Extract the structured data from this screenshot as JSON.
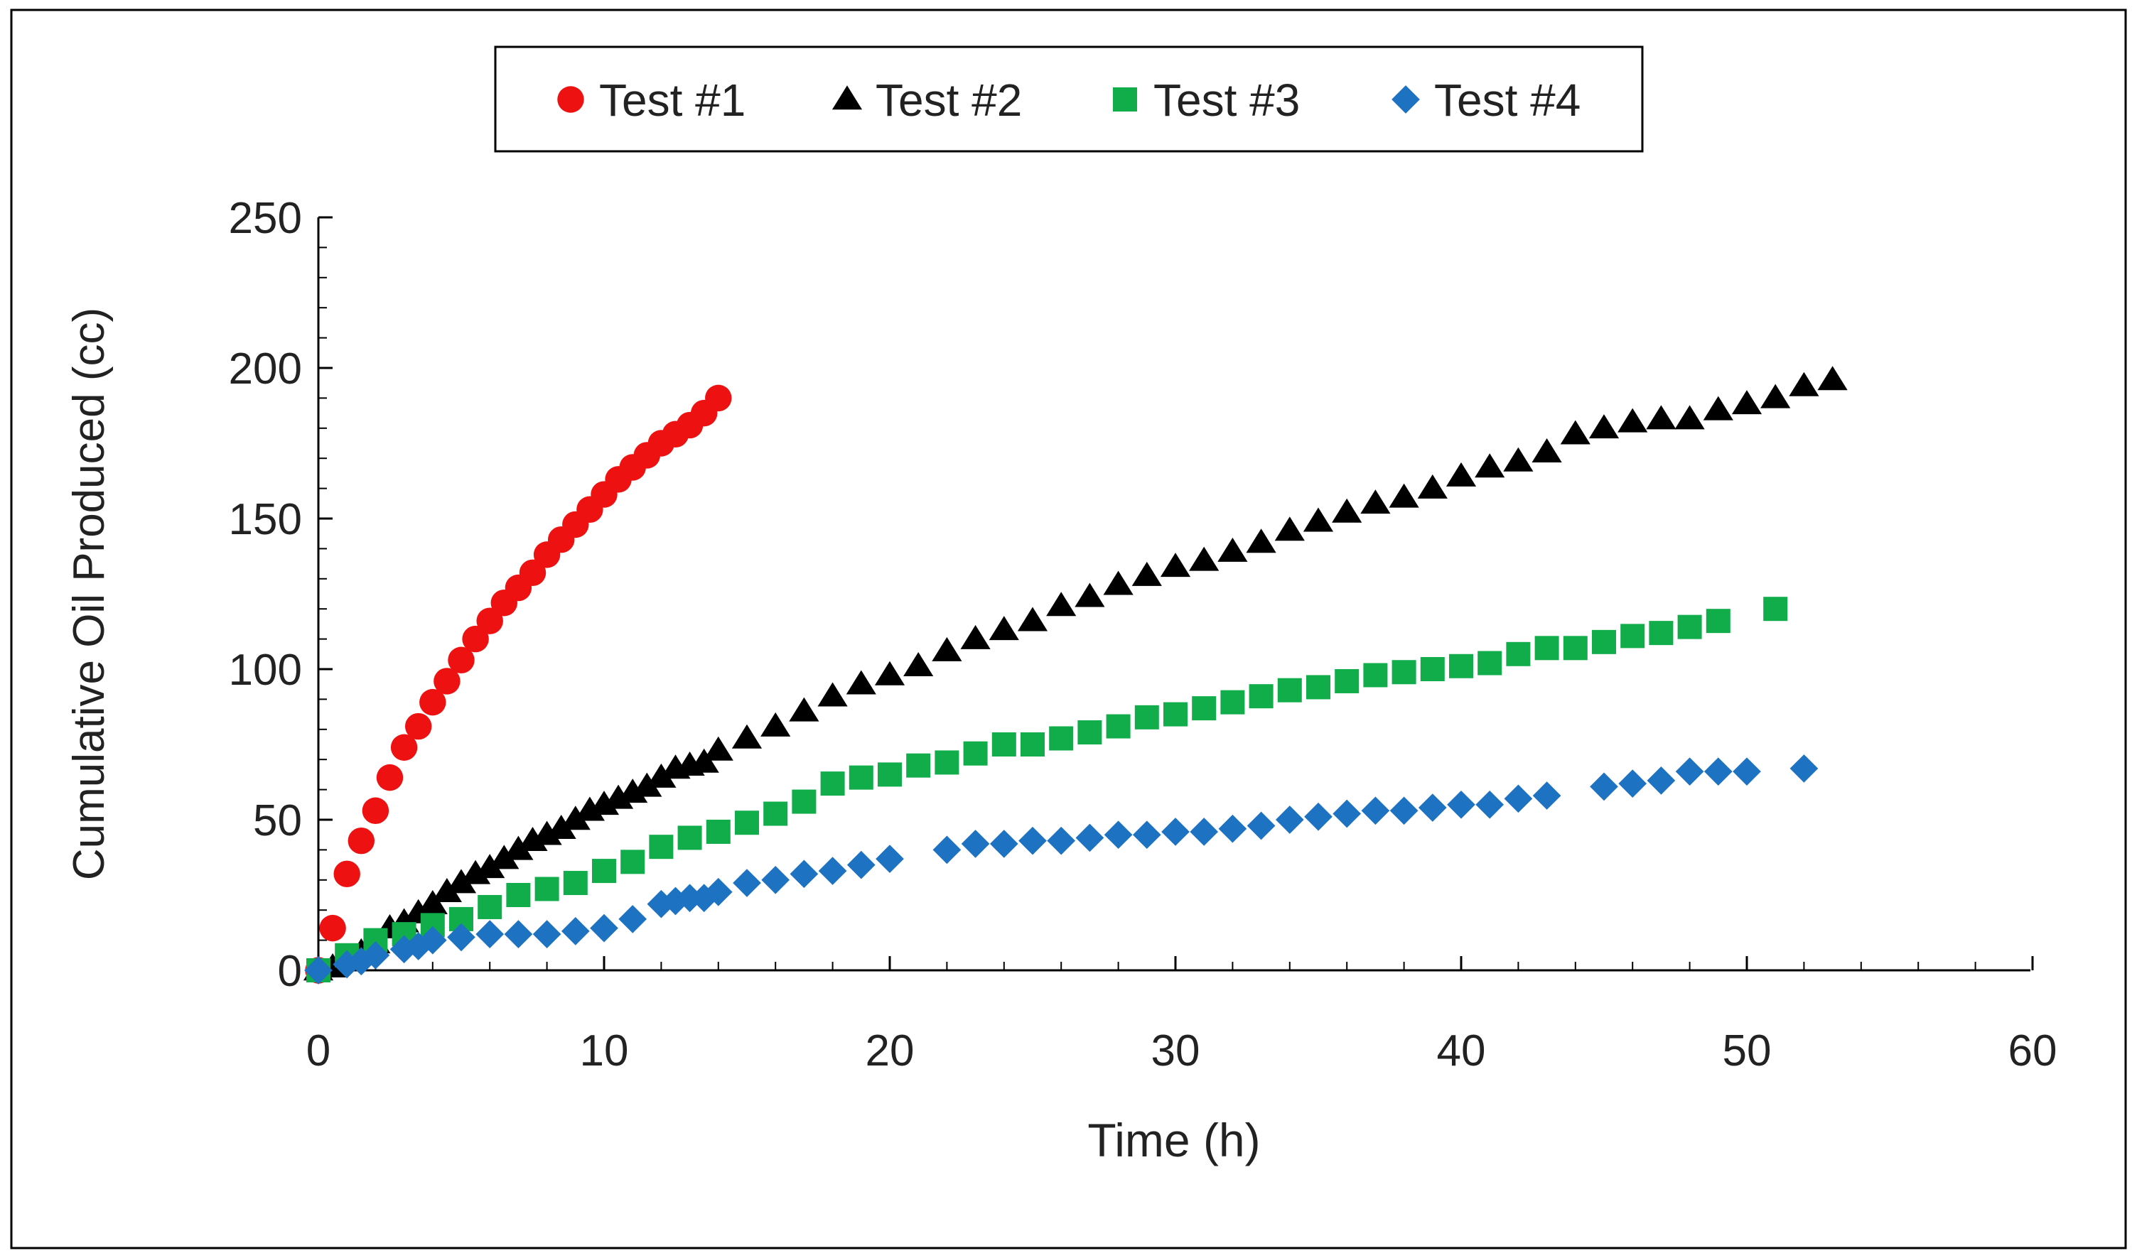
{
  "chart_data": {
    "type": "scatter",
    "title": "",
    "xlabel": "Time (h)",
    "ylabel": "Cumulative Oil Produced (cc)",
    "xlim": [
      0,
      60
    ],
    "ylim": [
      0,
      250
    ],
    "xticks": [
      0,
      10,
      20,
      30,
      40,
      50,
      60
    ],
    "yticks": [
      0,
      50,
      100,
      150,
      200,
      250
    ],
    "legend_position": "top-center",
    "grid": false,
    "series": [
      {
        "name": "Test #1",
        "marker": "circle",
        "color": "#ee1111",
        "points": [
          [
            0,
            0
          ],
          [
            0.5,
            14
          ],
          [
            1,
            32
          ],
          [
            1.5,
            43
          ],
          [
            2,
            53
          ],
          [
            2.5,
            64
          ],
          [
            3,
            74
          ],
          [
            3.5,
            81
          ],
          [
            4,
            89
          ],
          [
            4.5,
            96
          ],
          [
            5,
            103
          ],
          [
            5.5,
            110
          ],
          [
            6,
            116
          ],
          [
            6.5,
            122
          ],
          [
            7,
            127
          ],
          [
            7.5,
            132
          ],
          [
            8,
            138
          ],
          [
            8.5,
            143
          ],
          [
            9,
            148
          ],
          [
            9.5,
            153
          ],
          [
            10,
            158
          ],
          [
            10.5,
            163
          ],
          [
            11,
            167
          ],
          [
            11.5,
            171
          ],
          [
            12,
            175
          ],
          [
            12.5,
            178
          ],
          [
            13,
            181
          ],
          [
            13.5,
            185
          ],
          [
            14,
            190
          ]
        ]
      },
      {
        "name": "Test #2",
        "marker": "triangle",
        "color": "#000000",
        "points": [
          [
            0,
            0
          ],
          [
            0.5,
            1
          ],
          [
            1,
            3
          ],
          [
            1.5,
            6
          ],
          [
            2,
            9
          ],
          [
            2.5,
            14
          ],
          [
            3,
            16
          ],
          [
            3.5,
            19
          ],
          [
            4,
            22
          ],
          [
            4.5,
            26
          ],
          [
            5,
            29
          ],
          [
            5.5,
            32
          ],
          [
            6,
            34
          ],
          [
            6.5,
            37
          ],
          [
            7,
            40
          ],
          [
            7.5,
            43
          ],
          [
            8,
            45
          ],
          [
            8.5,
            47
          ],
          [
            9,
            50
          ],
          [
            9.5,
            53
          ],
          [
            10,
            55
          ],
          [
            10.5,
            57
          ],
          [
            11,
            59
          ],
          [
            11.5,
            61
          ],
          [
            12,
            64
          ],
          [
            12.5,
            67
          ],
          [
            13,
            68
          ],
          [
            13.5,
            69
          ],
          [
            14,
            73
          ],
          [
            15,
            77
          ],
          [
            16,
            81
          ],
          [
            17,
            86
          ],
          [
            18,
            91
          ],
          [
            19,
            95
          ],
          [
            20,
            98
          ],
          [
            21,
            101
          ],
          [
            22,
            106
          ],
          [
            23,
            110
          ],
          [
            24,
            113
          ],
          [
            25,
            116
          ],
          [
            26,
            121
          ],
          [
            27,
            124
          ],
          [
            28,
            128
          ],
          [
            29,
            131
          ],
          [
            30,
            134
          ],
          [
            31,
            136
          ],
          [
            32,
            139
          ],
          [
            33,
            142
          ],
          [
            34,
            146
          ],
          [
            35,
            149
          ],
          [
            36,
            152
          ],
          [
            37,
            155
          ],
          [
            38,
            157
          ],
          [
            39,
            160
          ],
          [
            40,
            164
          ],
          [
            41,
            167
          ],
          [
            42,
            169
          ],
          [
            43,
            172
          ],
          [
            44,
            178
          ],
          [
            45,
            180
          ],
          [
            46,
            182
          ],
          [
            47,
            183
          ],
          [
            48,
            183
          ],
          [
            49,
            186
          ],
          [
            50,
            188
          ],
          [
            51,
            190
          ],
          [
            52,
            194
          ],
          [
            53,
            196
          ]
        ]
      },
      {
        "name": "Test #3",
        "marker": "square",
        "color": "#12ad4b",
        "points": [
          [
            0,
            0
          ],
          [
            1,
            5
          ],
          [
            2,
            10
          ],
          [
            3,
            12
          ],
          [
            4,
            15
          ],
          [
            5,
            17
          ],
          [
            6,
            21
          ],
          [
            7,
            25
          ],
          [
            8,
            27
          ],
          [
            9,
            29
          ],
          [
            10,
            33
          ],
          [
            11,
            36
          ],
          [
            12,
            41
          ],
          [
            13,
            44
          ],
          [
            14,
            46
          ],
          [
            15,
            49
          ],
          [
            16,
            52
          ],
          [
            17,
            56
          ],
          [
            18,
            62
          ],
          [
            19,
            64
          ],
          [
            20,
            65
          ],
          [
            21,
            68
          ],
          [
            22,
            69
          ],
          [
            23,
            72
          ],
          [
            24,
            75
          ],
          [
            25,
            75
          ],
          [
            26,
            77
          ],
          [
            27,
            79
          ],
          [
            28,
            81
          ],
          [
            29,
            84
          ],
          [
            30,
            85
          ],
          [
            31,
            87
          ],
          [
            32,
            89
          ],
          [
            33,
            91
          ],
          [
            34,
            93
          ],
          [
            35,
            94
          ],
          [
            36,
            96
          ],
          [
            37,
            98
          ],
          [
            38,
            99
          ],
          [
            39,
            100
          ],
          [
            40,
            101
          ],
          [
            41,
            102
          ],
          [
            42,
            105
          ],
          [
            43,
            107
          ],
          [
            44,
            107
          ],
          [
            45,
            109
          ],
          [
            46,
            111
          ],
          [
            47,
            112
          ],
          [
            48,
            114
          ],
          [
            49,
            116
          ],
          [
            51,
            120
          ]
        ]
      },
      {
        "name": "Test #4",
        "marker": "diamond",
        "color": "#1d72c2",
        "points": [
          [
            0,
            0
          ],
          [
            1,
            2
          ],
          [
            1.5,
            3
          ],
          [
            2,
            5
          ],
          [
            3,
            7
          ],
          [
            3.5,
            8
          ],
          [
            4,
            10
          ],
          [
            5,
            11
          ],
          [
            6,
            12
          ],
          [
            7,
            12
          ],
          [
            8,
            12
          ],
          [
            9,
            13
          ],
          [
            10,
            14
          ],
          [
            11,
            17
          ],
          [
            12,
            22
          ],
          [
            12.5,
            23
          ],
          [
            13,
            24
          ],
          [
            13.5,
            24
          ],
          [
            14,
            26
          ],
          [
            15,
            29
          ],
          [
            16,
            30
          ],
          [
            17,
            32
          ],
          [
            18,
            33
          ],
          [
            19,
            35
          ],
          [
            20,
            37
          ],
          [
            22,
            40
          ],
          [
            23,
            42
          ],
          [
            24,
            42
          ],
          [
            25,
            43
          ],
          [
            26,
            43
          ],
          [
            27,
            44
          ],
          [
            28,
            45
          ],
          [
            29,
            45
          ],
          [
            30,
            46
          ],
          [
            31,
            46
          ],
          [
            32,
            47
          ],
          [
            33,
            48
          ],
          [
            34,
            50
          ],
          [
            35,
            51
          ],
          [
            36,
            52
          ],
          [
            37,
            53
          ],
          [
            38,
            53
          ],
          [
            39,
            54
          ],
          [
            40,
            55
          ],
          [
            41,
            55
          ],
          [
            42,
            57
          ],
          [
            43,
            58
          ],
          [
            45,
            61
          ],
          [
            46,
            62
          ],
          [
            47,
            63
          ],
          [
            48,
            66
          ],
          [
            49,
            66
          ],
          [
            50,
            66
          ],
          [
            52,
            67
          ]
        ]
      }
    ]
  }
}
